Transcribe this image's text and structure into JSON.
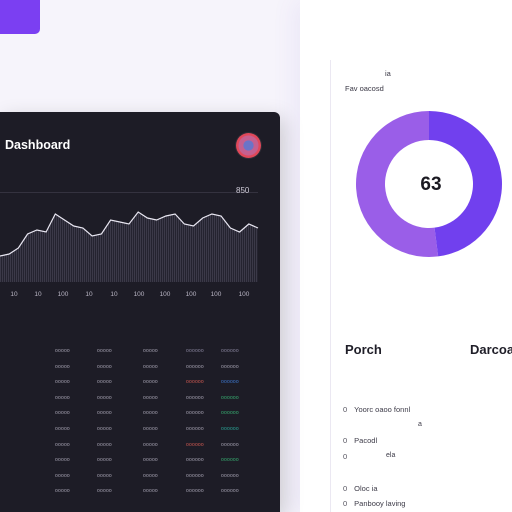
{
  "header": {
    "top_label": "ia",
    "subtitle": "Fav oacosd"
  },
  "dashboard": {
    "title": "Dashboard",
    "chart_max_label": "850",
    "x_ticks": [
      "10",
      "10",
      "100",
      "10",
      "10",
      "100",
      "100",
      "100",
      "100"
    ]
  },
  "chart_data": {
    "type": "area",
    "title": "",
    "series": [
      {
        "values": [
          60,
          58,
          52,
          38,
          34,
          36,
          18,
          24,
          30,
          32,
          40,
          38,
          24,
          26,
          28,
          16,
          22,
          24,
          20,
          18,
          28,
          30,
          22,
          18,
          20,
          32,
          36,
          28,
          32
        ]
      }
    ]
  },
  "table": {
    "rows": [
      [
        "ooooo",
        "ooooo",
        "ooooo",
        "oooooo",
        "oooooo"
      ],
      [
        "ooooo",
        "ooooo",
        "ooooo",
        "oooooo",
        "oooooo"
      ],
      [
        "ooooo",
        "ooooo",
        "ooooo",
        "oooooo",
        "oooooo"
      ],
      [
        "ooooo",
        "ooooo",
        "ooooo",
        "oooooo",
        "oooooo"
      ],
      [
        "ooooo",
        "ooooo",
        "ooooo",
        "oooooo",
        "oooooo"
      ],
      [
        "ooooo",
        "ooooo",
        "ooooo",
        "oooooo",
        "oooooo"
      ],
      [
        "ooooo",
        "ooooo",
        "ooooo",
        "oooooo",
        "oooooo"
      ],
      [
        "ooooo",
        "ooooo",
        "ooooo",
        "oooooo",
        "oooooo"
      ],
      [
        "ooooo",
        "ooooo",
        "ooooo",
        "oooooo",
        "oooooo"
      ],
      [
        "ooooo",
        "ooooo",
        "ooooo",
        "oooooo",
        "oooooo"
      ]
    ],
    "row_colors": [
      [
        "#a7a3b3",
        "#a7a3b3",
        "#a7a3b3",
        "#8b87a0",
        "#8b87a0"
      ],
      [
        "#a7a3b3",
        "#a7a3b3",
        "#a7a3b3",
        "#a7a3b3",
        "#a7a3b3"
      ],
      [
        "#a7a3b3",
        "#a7a3b3",
        "#a7a3b3",
        "#d25b52",
        "#3e7bd6"
      ],
      [
        "#a7a3b3",
        "#a7a3b3",
        "#a7a3b3",
        "#a7a3b3",
        "#38b173"
      ],
      [
        "#a7a3b3",
        "#a7a3b3",
        "#a7a3b3",
        "#a7a3b3",
        "#38b173"
      ],
      [
        "#a7a3b3",
        "#a7a3b3",
        "#a7a3b3",
        "#a7a3b3",
        "#2aa89a"
      ],
      [
        "#a7a3b3",
        "#a7a3b3",
        "#a7a3b3",
        "#d25b52",
        "#a7a3b3"
      ],
      [
        "#a7a3b3",
        "#a7a3b3",
        "#a7a3b3",
        "#a7a3b3",
        "#38b173"
      ],
      [
        "#a7a3b3",
        "#a7a3b3",
        "#a7a3b3",
        "#a7a3b3",
        "#a7a3b3"
      ],
      [
        "#a7a3b3",
        "#a7a3b3",
        "#a7a3b3",
        "#a7a3b3",
        "#a7a3b3"
      ]
    ]
  },
  "donut": {
    "value": "63",
    "fraction": 0.48,
    "colors": {
      "primary": "#7140ee",
      "secondary": "#9a5ee8"
    }
  },
  "right": {
    "heading_left": "Porch",
    "heading_right": "Darcoa",
    "list": [
      {
        "bullet": "0",
        "text": "Yoorc oaoo fonnl"
      },
      {
        "bullet": "0",
        "text": "Pacodl"
      },
      {
        "bullet": "0",
        "text": ""
      },
      {
        "bullet": "0",
        "text": "Oloc ia"
      },
      {
        "bullet": "0",
        "text": "Panbooy laving"
      }
    ],
    "aux_a": "a",
    "aux_b": "ela"
  },
  "colors": {
    "accent": "#7b3ff2",
    "dark_bg": "#1d1c26",
    "line": "#e9e7f2"
  }
}
